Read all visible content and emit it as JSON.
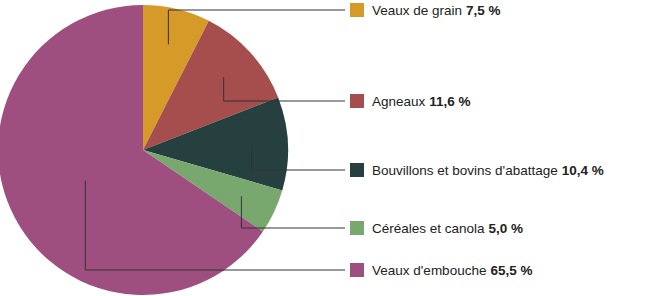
{
  "chart_data": {
    "type": "pie",
    "categories": [
      "Veaux de grain",
      "Agneaux",
      "Bouvillons et bovins d'abattage",
      "Céréales et canola",
      "Veaux d'embouche"
    ],
    "values": [
      7.5,
      11.6,
      10.4,
      5.0,
      65.5
    ],
    "value_labels": [
      "7,5 %",
      "11,6 %",
      "10,4 %",
      "5,0 %",
      "65,5 %"
    ],
    "colors": [
      "#d69a28",
      "#a64d4d",
      "#25403e",
      "#79a86f",
      "#9e4f7f"
    ],
    "data_labels": true,
    "legend": "right"
  }
}
